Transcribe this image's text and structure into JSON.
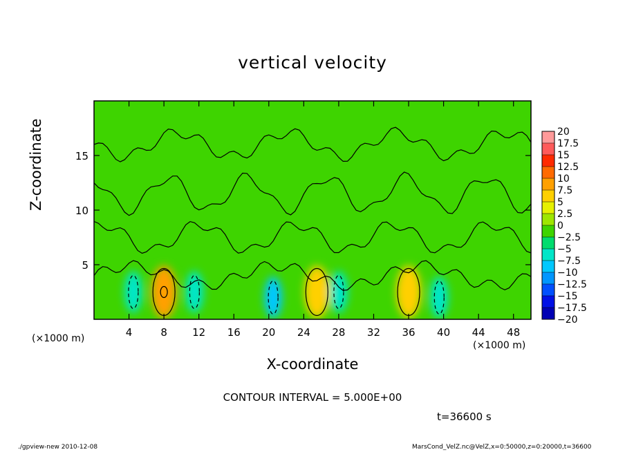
{
  "chart_data": {
    "type": "heatmap",
    "title": "vertical velocity",
    "xlabel": "X-coordinate",
    "ylabel": "Z-coordinate",
    "x_unit_label": "(×1000 m)",
    "x_range": [
      0,
      50
    ],
    "y_range": [
      0,
      20
    ],
    "x_ticks": [
      4,
      8,
      12,
      16,
      20,
      24,
      28,
      32,
      36,
      40,
      44,
      48
    ],
    "y_ticks": [
      5,
      10,
      15
    ],
    "contour_interval_label": "CONTOUR INTERVAL = 5.000E+00",
    "time_label": "t=36600 s",
    "colorbar": {
      "levels": [
        "20",
        "17.5",
        "15",
        "12.5",
        "10",
        "7.5",
        "5",
        "2.5",
        "0",
        "−2.5",
        "−5",
        "−7.5",
        "−10",
        "−12.5",
        "−15",
        "−17.5",
        "−20"
      ],
      "colors": [
        "#ff9a9a",
        "#ff5a5a",
        "#ff2a00",
        "#ff6a00",
        "#ffa000",
        "#ffd000",
        "#e6f000",
        "#9ee600",
        "#3ed400",
        "#00dc6e",
        "#00e6c8",
        "#00c8ff",
        "#0096ff",
        "#0050ff",
        "#0010e6",
        "#0000b4",
        "#5a00b4"
      ]
    },
    "features": [
      {
        "kind": "updraft",
        "x": 8,
        "z": 2.5,
        "peak": 10
      },
      {
        "kind": "updraft",
        "x": 25.5,
        "z": 2.5,
        "peak": 7.5
      },
      {
        "kind": "updraft",
        "x": 36,
        "z": 2.5,
        "peak": 7.5
      },
      {
        "kind": "downdraft",
        "x": 4.5,
        "z": 2.5,
        "peak": -5
      },
      {
        "kind": "downdraft",
        "x": 11.5,
        "z": 2.5,
        "peak": -5
      },
      {
        "kind": "downdraft",
        "x": 20.5,
        "z": 2,
        "peak": -7.5
      },
      {
        "kind": "downdraft",
        "x": 28,
        "z": 2.5,
        "peak": -5
      },
      {
        "kind": "downdraft",
        "x": 39.5,
        "z": 2,
        "peak": -5
      }
    ]
  },
  "footer": {
    "left": "./gpview-new  2010-12-08",
    "right": "MarsCond_VelZ.nc@VelZ,x=0:50000,z=0:20000,t=36600"
  }
}
